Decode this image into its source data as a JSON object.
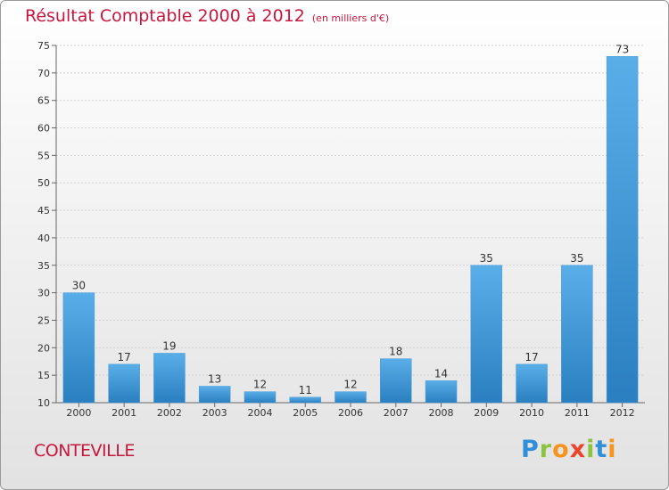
{
  "chart_data": {
    "type": "bar",
    "title": "Résultat Comptable 2000 à 2012",
    "subtitle": "(en milliers d'€)",
    "xlabel": "",
    "ylabel": "",
    "categories": [
      "2000",
      "2001",
      "2002",
      "2003",
      "2004",
      "2005",
      "2006",
      "2007",
      "2008",
      "2009",
      "2010",
      "2011",
      "2012"
    ],
    "values": [
      30,
      17,
      19,
      13,
      12,
      11,
      12,
      18,
      14,
      35,
      17,
      35,
      73
    ],
    "ylim": [
      10,
      75
    ],
    "yticks": [
      10,
      15,
      20,
      25,
      30,
      35,
      40,
      45,
      50,
      55,
      60,
      65,
      70,
      75
    ],
    "grid": true
  },
  "commune": "CONTEVILLE",
  "logo": {
    "letters": [
      "P",
      "r",
      "o",
      "x",
      "i",
      "t",
      "i"
    ],
    "colors": [
      "#2f8fd8",
      "#8bc53f",
      "#f7941d",
      "#e8452c",
      "#8bc53f",
      "#2f8fd8",
      "#f7941d"
    ]
  },
  "colors": {
    "title": "#c8173f",
    "bar_light": "#5aaee8",
    "bar_dark": "#2a7fc0"
  }
}
